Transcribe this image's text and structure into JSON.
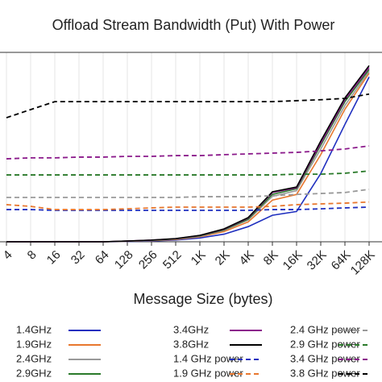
{
  "chart_data": {
    "type": "line",
    "title": "Offload Stream Bandwidth (Put) With Power",
    "x_label": "Message Size (bytes)",
    "categories": [
      "4",
      "8",
      "16",
      "32",
      "64",
      "128",
      "256",
      "512",
      "1K",
      "2K",
      "4K",
      "8K",
      "16K",
      "32K",
      "64K",
      "128K"
    ],
    "ylim": [
      0,
      100
    ],
    "grid": true,
    "series": [
      {
        "name": "1.4GHz",
        "color": "#1f2fbf",
        "style": "solid",
        "values": [
          0,
          0,
          0,
          0,
          0,
          0.2,
          0.4,
          0.9,
          2,
          4,
          8,
          14,
          16,
          36,
          62,
          87
        ]
      },
      {
        "name": "1.9GHz",
        "color": "#e8772e",
        "style": "solid",
        "values": [
          0,
          0,
          0,
          0,
          0,
          0.3,
          0.6,
          1.2,
          2.6,
          5.4,
          10.5,
          22,
          25,
          46,
          70,
          89
        ]
      },
      {
        "name": "2.4GHz",
        "color": "#999999",
        "style": "solid",
        "values": [
          0,
          0,
          0,
          0,
          0,
          0.3,
          0.7,
          1.4,
          2.9,
          6,
          11.5,
          24,
          27,
          49,
          72,
          90
        ]
      },
      {
        "name": "2.9GHz",
        "color": "#2a7a2a",
        "style": "solid",
        "values": [
          0,
          0,
          0,
          0,
          0,
          0.4,
          0.8,
          1.5,
          3.1,
          6.3,
          12,
          25,
          28,
          51,
          74,
          91
        ]
      },
      {
        "name": "3.4GHz",
        "color": "#8b1a8b",
        "style": "solid",
        "values": [
          0,
          0,
          0,
          0,
          0,
          0.4,
          0.9,
          1.6,
          3.3,
          6.6,
          12.5,
          26,
          28.5,
          52,
          75,
          92
        ]
      },
      {
        "name": "3.8GHz",
        "color": "#000000",
        "style": "solid",
        "values": [
          0,
          0,
          0,
          0,
          0,
          0.4,
          0.9,
          1.7,
          3.4,
          6.8,
          12.8,
          26.4,
          28.9,
          53.2,
          76,
          93
        ]
      },
      {
        "name": "1.4 GHz power",
        "color": "#1f2fbf",
        "style": "dashed",
        "values": [
          17,
          17,
          16.6,
          16.6,
          16.6,
          16.6,
          16.6,
          16.6,
          16.6,
          16.6,
          16.6,
          17,
          17,
          17.4,
          17.9,
          18.3
        ]
      },
      {
        "name": "1.9 GHz power",
        "color": "#e8772e",
        "style": "dashed",
        "values": [
          19.6,
          18.7,
          17,
          17,
          17,
          17.4,
          17.9,
          18.3,
          18.3,
          18.3,
          18.3,
          18.7,
          19.6,
          20,
          20.4,
          21
        ]
      },
      {
        "name": "2.4 GHz power",
        "color": "#999999",
        "style": "dashed",
        "values": [
          23.4,
          23.4,
          23.4,
          23.4,
          23.4,
          23.4,
          23.4,
          23.4,
          23.8,
          23.8,
          23.8,
          24.3,
          25,
          25.5,
          26,
          27.7
        ]
      },
      {
        "name": "2.9 GHz power",
        "color": "#2a7a2a",
        "style": "dashed",
        "values": [
          35.3,
          35.3,
          35.3,
          35.3,
          35.3,
          35.3,
          35.3,
          35.3,
          35.3,
          35.3,
          35.3,
          35.3,
          35.7,
          35.7,
          36.2,
          37.4
        ]
      },
      {
        "name": "3.4 GHz power",
        "color": "#8b1a8b",
        "style": "dashed",
        "values": [
          43.8,
          44.3,
          44.3,
          44.7,
          44.7,
          45.1,
          45.1,
          45.5,
          45.5,
          46,
          46.4,
          46.8,
          47.2,
          48,
          49,
          50.6
        ]
      },
      {
        "name": "3.8 GHz power",
        "color": "#000000",
        "style": "dashed",
        "values": [
          65.5,
          69.8,
          74,
          74,
          74,
          74,
          74,
          74,
          74,
          74,
          74,
          74,
          74.5,
          75,
          75.7,
          78
        ]
      }
    ]
  }
}
